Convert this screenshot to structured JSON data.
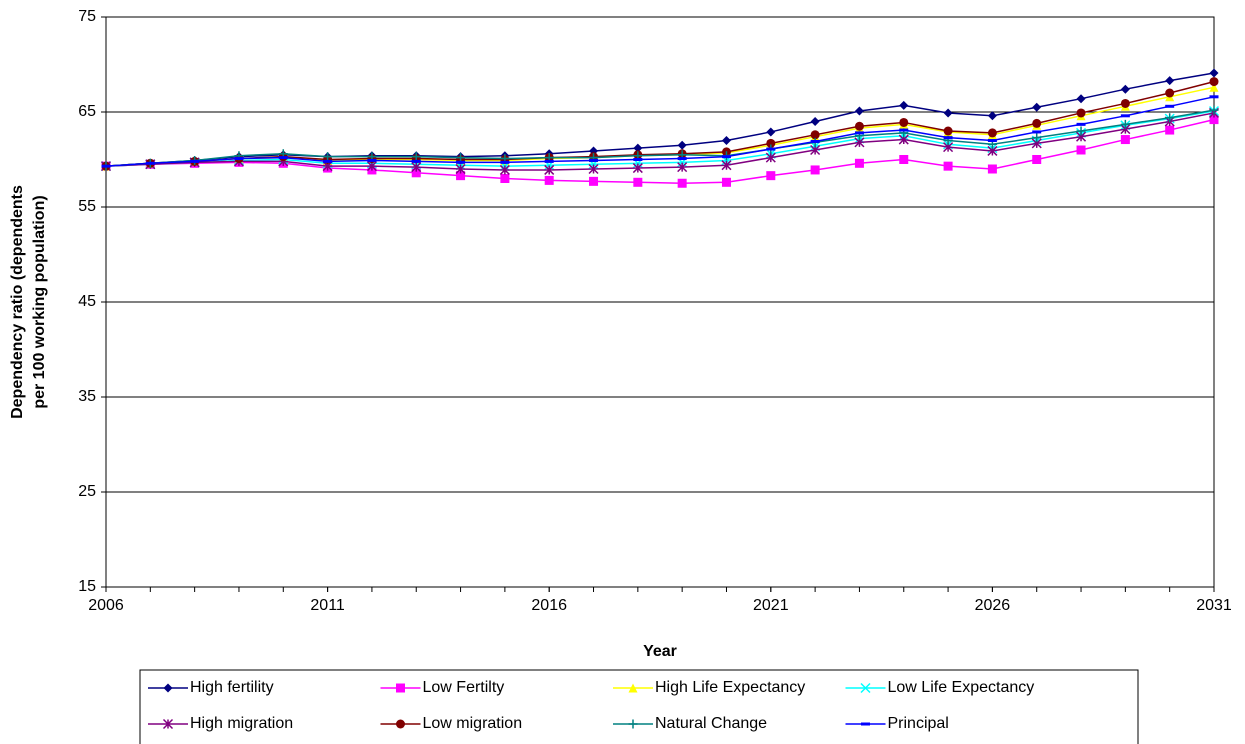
{
  "chart_data": {
    "type": "line",
    "x_label": "Year",
    "y_label_lines": [
      "Dependency ratio (dependents",
      "per 100 working population)"
    ],
    "x": [
      2006,
      2007,
      2008,
      2009,
      2010,
      2011,
      2012,
      2013,
      2014,
      2015,
      2016,
      2017,
      2018,
      2019,
      2020,
      2021,
      2022,
      2023,
      2024,
      2025,
      2026,
      2027,
      2028,
      2029,
      2030,
      2031
    ],
    "xlim": [
      2006,
      2031
    ],
    "xticks": [
      2006,
      2011,
      2016,
      2021,
      2026,
      2031
    ],
    "ylim": [
      15,
      75
    ],
    "yticks": [
      15,
      25,
      35,
      45,
      55,
      65,
      75
    ],
    "grid": true,
    "legend": "bottom",
    "series": [
      {
        "name": "High fertility",
        "color": "#000080",
        "marker": "diamond",
        "values": [
          59.3,
          59.6,
          59.9,
          60.3,
          60.5,
          60.3,
          60.4,
          60.4,
          60.3,
          60.4,
          60.6,
          60.9,
          61.2,
          61.5,
          62.0,
          62.9,
          64.0,
          65.1,
          65.7,
          64.9,
          64.6,
          65.5,
          66.4,
          67.4,
          68.3,
          69.1
        ]
      },
      {
        "name": "Low Fertilty",
        "color": "#ff00ff",
        "marker": "square",
        "values": [
          59.3,
          59.5,
          59.6,
          59.7,
          59.6,
          59.1,
          58.9,
          58.6,
          58.3,
          58.0,
          57.8,
          57.7,
          57.6,
          57.5,
          57.6,
          58.3,
          58.9,
          59.6,
          60.0,
          59.3,
          59.0,
          60.0,
          61.0,
          62.1,
          63.1,
          64.2
        ]
      },
      {
        "name": "High Life Expectancy",
        "color": "#ffff00",
        "marker": "triangle",
        "values": [
          59.3,
          59.6,
          59.8,
          60.1,
          60.2,
          59.9,
          60.0,
          60.0,
          59.9,
          59.9,
          60.1,
          60.2,
          60.4,
          60.5,
          60.7,
          61.5,
          62.4,
          63.3,
          63.7,
          62.9,
          62.6,
          63.6,
          64.6,
          65.6,
          66.6,
          67.6
        ]
      },
      {
        "name": "Low Life Expectancy",
        "color": "#00ffff",
        "marker": "x",
        "values": [
          59.3,
          59.5,
          59.7,
          59.9,
          60.0,
          59.6,
          59.6,
          59.5,
          59.4,
          59.3,
          59.4,
          59.5,
          59.6,
          59.7,
          59.9,
          60.6,
          61.4,
          62.2,
          62.5,
          61.6,
          61.2,
          62.0,
          62.8,
          63.6,
          64.3,
          65.1
        ]
      },
      {
        "name": "High migration",
        "color": "#800080",
        "marker": "asterisk",
        "values": [
          59.3,
          59.5,
          59.7,
          59.8,
          59.8,
          59.3,
          59.3,
          59.2,
          59.0,
          58.9,
          58.9,
          59.0,
          59.1,
          59.2,
          59.4,
          60.2,
          61.0,
          61.8,
          62.1,
          61.3,
          60.9,
          61.7,
          62.4,
          63.2,
          64.0,
          64.9
        ]
      },
      {
        "name": "Low migration",
        "color": "#800000",
        "marker": "circle",
        "values": [
          59.3,
          59.6,
          59.8,
          60.1,
          60.3,
          60.0,
          60.1,
          60.1,
          60.0,
          60.0,
          60.2,
          60.3,
          60.5,
          60.6,
          60.8,
          61.7,
          62.6,
          63.5,
          63.9,
          63.0,
          62.8,
          63.8,
          64.9,
          65.9,
          67.0,
          68.2
        ]
      },
      {
        "name": "Natural Change",
        "color": "#008080",
        "marker": "plus",
        "values": [
          59.3,
          59.6,
          59.9,
          60.4,
          60.6,
          60.3,
          60.3,
          60.3,
          60.2,
          60.1,
          60.2,
          60.2,
          60.4,
          60.5,
          60.4,
          61.1,
          61.8,
          62.5,
          62.8,
          62.0,
          61.6,
          62.3,
          63.0,
          63.7,
          64.4,
          65.2
        ]
      },
      {
        "name": "Principal",
        "color": "#0000ff",
        "marker": "dash",
        "values": [
          59.3,
          59.6,
          59.8,
          60.1,
          60.2,
          59.8,
          59.9,
          59.8,
          59.7,
          59.7,
          59.8,
          59.9,
          60.0,
          60.1,
          60.3,
          61.1,
          61.9,
          62.8,
          63.1,
          62.3,
          62.0,
          62.9,
          63.7,
          64.6,
          65.6,
          66.6
        ]
      }
    ]
  }
}
